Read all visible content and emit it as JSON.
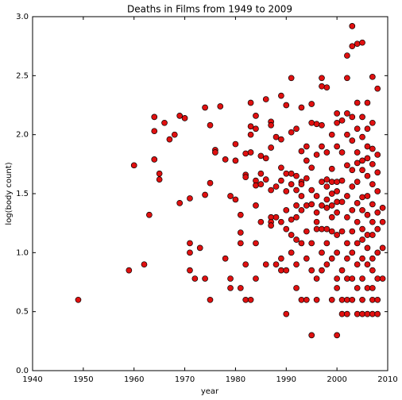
{
  "chart_data": {
    "type": "scatter",
    "title": "Deaths in Films from 1949 to 2009",
    "x_label": "year",
    "y_label": "log(body count)",
    "color": "#e01010",
    "xlim": [
      1940,
      2010
    ],
    "xticks": [
      1940,
      1950,
      1960,
      1970,
      1980,
      1990,
      2000,
      2010
    ],
    "ylim": [
      0,
      3
    ],
    "yticks": [
      {
        "value": 0,
        "label": "0.0"
      },
      0.5,
      {
        "value": 1,
        "label": "1.0"
      },
      1.5,
      {
        "value": 2,
        "label": "2.0"
      },
      2.5,
      {
        "value": 3,
        "label": "3.0"
      }
    ],
    "x": [
      1949,
      1959,
      1960,
      1962,
      1963,
      1964,
      1964,
      1964,
      1965,
      1965,
      1966,
      1967,
      1968,
      1969,
      1969,
      1970,
      1971,
      1971,
      1971,
      1971,
      1972,
      1973,
      1974,
      1974,
      1974,
      1975,
      1975,
      1975,
      1976,
      1976,
      1977,
      1978,
      1978,
      1979,
      1979,
      1979,
      1980,
      1980,
      1980,
      1981,
      1981,
      1981,
      1981,
      1982,
      1982,
      1982,
      1982,
      1982,
      1983,
      1983,
      1983,
      1983,
      1983,
      1984,
      1984,
      1984,
      1984,
      1984,
      1984,
      1984,
      1985,
      1985,
      1985,
      1985,
      1986,
      1986,
      1986,
      1986,
      1987,
      1987,
      1987,
      1987,
      1987,
      1987,
      1987,
      1988,
      1988,
      1988,
      1988,
      1989,
      1989,
      1989,
      1989,
      1989,
      1989,
      1989,
      1990,
      1990,
      1990,
      1990,
      1990,
      1990,
      1990,
      1991,
      1991,
      1991,
      1991,
      1991,
      1991,
      1991,
      1992,
      1992,
      1992,
      1992,
      1992,
      1992,
      1992,
      1992,
      1993,
      1993,
      1993,
      1993,
      1993,
      1993,
      1993,
      1993,
      1994,
      1994,
      1994,
      1994,
      1994,
      1994,
      1994,
      1995,
      1995,
      1995,
      1995,
      1995,
      1995,
      1995,
      1995,
      1996,
      1996,
      1996,
      1996,
      1996,
      1996,
      1996,
      1996,
      1997,
      1997,
      1997,
      1997,
      1997,
      1997,
      1997,
      1997,
      1997,
      1998,
      1998,
      1998,
      1998,
      1998,
      1998,
      1998,
      1998,
      1998,
      1999,
      1999,
      1999,
      1999,
      1999,
      1999,
      1999,
      1999,
      1999,
      2000,
      2000,
      2000,
      2000,
      2000,
      2000,
      2000,
      2000,
      2000,
      2000,
      2000,
      2000,
      2001,
      2001,
      2001,
      2001,
      2001,
      2001,
      2001,
      2001,
      2002,
      2002,
      2002,
      2002,
      2002,
      2002,
      2002,
      2002,
      2002,
      2002,
      2002,
      2002,
      2003,
      2003,
      2003,
      2003,
      2003,
      2003,
      2003,
      2003,
      2003,
      2003,
      2003,
      2004,
      2004,
      2004,
      2004,
      2004,
      2004,
      2004,
      2004,
      2004,
      2004,
      2004,
      2004,
      2005,
      2005,
      2005,
      2005,
      2005,
      2005,
      2005,
      2005,
      2005,
      2005,
      2005,
      2005,
      2005,
      2006,
      2006,
      2006,
      2006,
      2006,
      2006,
      2006,
      2006,
      2006,
      2006,
      2006,
      2006,
      2007,
      2007,
      2007,
      2007,
      2007,
      2007,
      2007,
      2007,
      2007,
      2007,
      2007,
      2007,
      2007,
      2008,
      2008,
      2008,
      2008,
      2008,
      2008,
      2008,
      2008,
      2008,
      2008,
      2009,
      2009,
      2009,
      2009
    ],
    "values": [
      0.6,
      0.85,
      1.74,
      0.9,
      1.32,
      2.15,
      2.03,
      1.79,
      1.67,
      1.62,
      2.1,
      1.96,
      2.0,
      2.16,
      1.42,
      2.14,
      1.46,
      1.08,
      1.0,
      0.85,
      0.78,
      1.04,
      2.23,
      1.49,
      0.78,
      2.08,
      1.59,
      0.6,
      1.87,
      1.85,
      2.24,
      1.79,
      0.95,
      1.48,
      0.78,
      0.7,
      1.92,
      1.78,
      1.45,
      1.32,
      1.17,
      1.08,
      0.7,
      1.66,
      1.64,
      1.84,
      0.9,
      0.6,
      2.27,
      2.07,
      2.0,
      1.85,
      0.6,
      2.16,
      2.05,
      1.61,
      1.57,
      1.4,
      1.08,
      0.78,
      1.67,
      1.58,
      1.82,
      1.26,
      2.3,
      1.8,
      1.62,
      0.9,
      2.11,
      2.08,
      1.89,
      1.53,
      1.3,
      1.26,
      1.23,
      1.98,
      1.56,
      1.3,
      0.9,
      2.33,
      1.96,
      1.72,
      1.61,
      1.26,
      0.95,
      0.85,
      2.25,
      1.67,
      1.52,
      1.36,
      1.2,
      0.85,
      0.48,
      2.48,
      2.02,
      1.67,
      1.58,
      1.28,
      1.15,
      1.0,
      2.05,
      1.65,
      1.53,
      1.4,
      1.3,
      1.11,
      0.9,
      0.7,
      2.23,
      1.86,
      1.6,
      1.58,
      1.48,
      1.36,
      1.08,
      0.6,
      1.9,
      1.78,
      1.63,
      1.4,
      1.18,
      0.95,
      0.6,
      2.26,
      2.1,
      1.72,
      1.53,
      1.41,
      1.08,
      0.85,
      0.3,
      2.09,
      1.83,
      1.48,
      1.34,
      1.26,
      1.2,
      0.78,
      0.6,
      2.48,
      2.41,
      2.08,
      1.9,
      1.6,
      1.4,
      1.2,
      1.0,
      0.85,
      2.4,
      1.85,
      1.62,
      1.56,
      1.45,
      1.38,
      1.2,
      1.08,
      0.9,
      2.0,
      1.71,
      1.6,
      1.5,
      1.4,
      1.3,
      1.18,
      0.95,
      0.6,
      2.18,
      2.1,
      1.9,
      1.6,
      1.52,
      1.43,
      1.34,
      1.15,
      1.0,
      0.78,
      0.7,
      0.3,
      2.12,
      1.85,
      1.61,
      1.43,
      1.18,
      0.85,
      0.6,
      0.48,
      2.67,
      2.48,
      2.18,
      2.0,
      1.74,
      1.48,
      1.3,
      1.08,
      0.95,
      0.78,
      0.6,
      0.48,
      2.92,
      2.75,
      2.15,
      1.95,
      1.7,
      1.56,
      1.36,
      1.18,
      1.0,
      0.78,
      0.6,
      2.77,
      2.27,
      2.05,
      1.85,
      1.76,
      1.6,
      1.42,
      1.26,
      1.08,
      0.9,
      0.7,
      0.48,
      2.78,
      2.15,
      1.98,
      1.78,
      1.7,
      1.47,
      1.36,
      1.2,
      1.11,
      0.95,
      0.78,
      0.6,
      0.48,
      2.27,
      2.05,
      1.9,
      1.8,
      1.65,
      1.48,
      1.32,
      1.15,
      1.04,
      0.9,
      0.7,
      0.48,
      2.49,
      2.1,
      1.88,
      1.75,
      1.58,
      1.41,
      1.26,
      1.15,
      0.95,
      0.85,
      0.7,
      0.6,
      0.48,
      2.39,
      1.83,
      1.68,
      1.52,
      1.34,
      1.2,
      1.0,
      0.78,
      0.6,
      0.48,
      1.38,
      1.26,
      1.04,
      0.78
    ]
  }
}
